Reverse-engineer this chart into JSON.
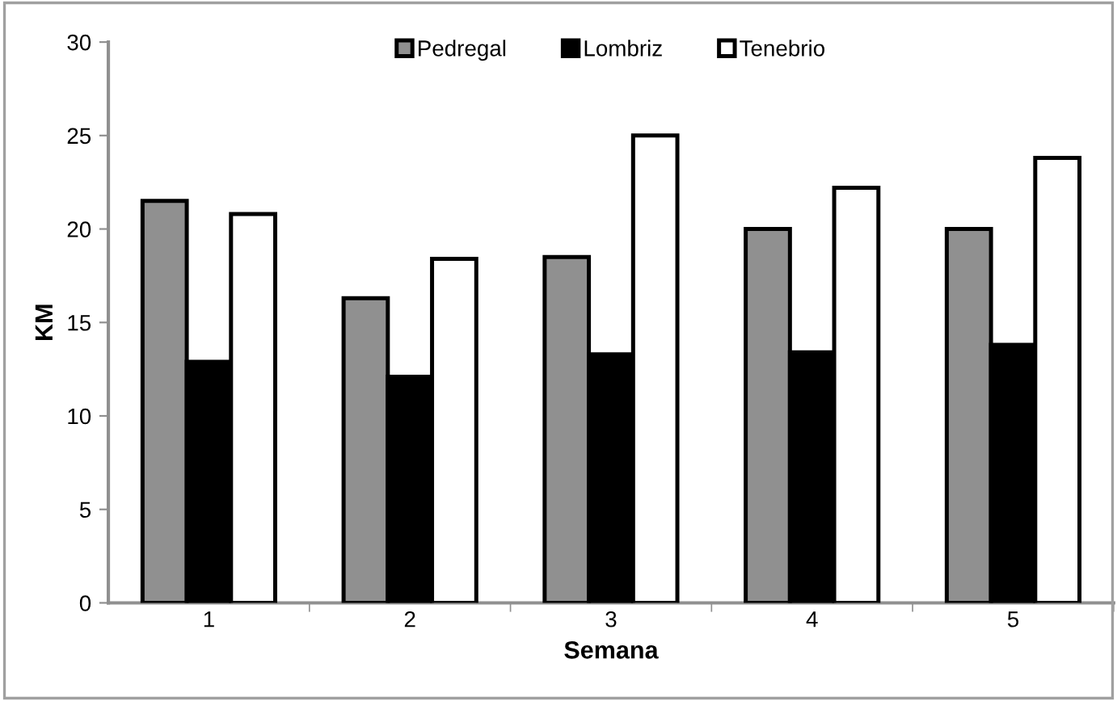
{
  "chart_data": {
    "type": "bar",
    "xlabel": "Semana",
    "ylabel": "KM",
    "categories": [
      "1",
      "2",
      "3",
      "4",
      "5"
    ],
    "series": [
      {
        "name": "Pedregal",
        "color": "#909090",
        "values": [
          21.5,
          16.3,
          18.5,
          20.0,
          20.0
        ]
      },
      {
        "name": "Lombriz",
        "color": "#000000",
        "values": [
          12.9,
          12.1,
          13.3,
          13.4,
          13.8
        ]
      },
      {
        "name": "Tenebrio",
        "color": "#ffffff",
        "values": [
          20.8,
          18.4,
          25.0,
          22.2,
          23.8
        ]
      }
    ],
    "ylim": [
      0,
      30
    ],
    "yticks": [
      0,
      5,
      10,
      15,
      20,
      25,
      30
    ],
    "grid": false,
    "legend": "top"
  }
}
